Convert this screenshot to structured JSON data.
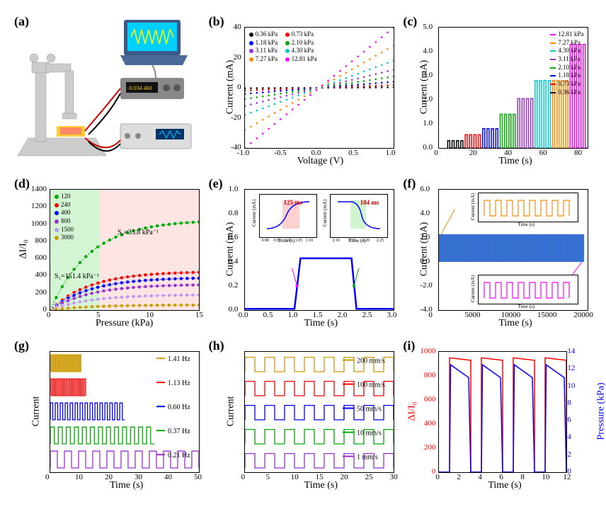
{
  "labels": {
    "a": "(a)",
    "b": "(b)",
    "c": "(c)",
    "d": "(d)",
    "e": "(e)",
    "f": "(f)",
    "g": "(g)",
    "h": "(h)",
    "i": "(i)"
  },
  "panel_b": {
    "type": "scatter",
    "xlabel": "Voltage (V)",
    "ylabel": "Current (mA)",
    "xlim": [
      -1.0,
      1.0
    ],
    "ylim": [
      -40,
      40
    ],
    "xticks": [
      -1.0,
      -0.5,
      0.0,
      0.5,
      1.0
    ],
    "yticks": [
      -40,
      -20,
      0,
      20,
      40
    ],
    "series": [
      {
        "label": "0.36 kPa",
        "color": "#000000",
        "slope": 0.3
      },
      {
        "label": "0.73 kPa",
        "color": "#ff0000",
        "slope": 1.8
      },
      {
        "label": "1.18 kPa",
        "color": "#0000ff",
        "slope": 4.0
      },
      {
        "label": "2.10 kPa",
        "color": "#00aa00",
        "slope": 7.5
      },
      {
        "label": "3.11 kPa",
        "color": "#9932cc",
        "slope": 12
      },
      {
        "label": "4.30 kPa",
        "color": "#00cccc",
        "slope": 18
      },
      {
        "label": "7.27 kPa",
        "color": "#ff8800",
        "slope": 28
      },
      {
        "label": "12.81 kPa",
        "color": "#ff00ff",
        "slope": 40
      }
    ]
  },
  "panel_c": {
    "type": "line",
    "xlabel": "Time (s)",
    "ylabel": "Current (mA)",
    "xlim": [
      0,
      85
    ],
    "ylim": [
      0,
      5.0
    ],
    "xticks": [
      0,
      20,
      40,
      60,
      80
    ],
    "yticks": [
      0.0,
      1.0,
      2.0,
      3.0,
      4.0,
      5.0
    ],
    "series": [
      {
        "label": "12.81 kPa",
        "color": "#ff00ff",
        "start": 75,
        "height": 4.3
      },
      {
        "label": "7.27 kPa",
        "color": "#ff8800",
        "start": 65,
        "height": 2.8
      },
      {
        "label": "4.30 kPa",
        "color": "#00cccc",
        "start": 55,
        "height": 2.8
      },
      {
        "label": "3.11 kPa",
        "color": "#9932cc",
        "start": 45,
        "height": 2.05
      },
      {
        "label": "2.10 kPa",
        "color": "#00aa00",
        "start": 35,
        "height": 1.4
      },
      {
        "label": "1.18 kPa",
        "color": "#0000ff",
        "start": 25,
        "height": 0.8
      },
      {
        "label": "0.73 kPa",
        "color": "#ff0000",
        "start": 15,
        "height": 0.55
      },
      {
        "label": "0.36 kPa",
        "color": "#000000",
        "start": 5,
        "height": 0.3
      }
    ]
  },
  "panel_d": {
    "type": "scatter",
    "xlabel": "Pressure (kPa)",
    "ylabel": "ΔI/I₀",
    "xlim": [
      0,
      15
    ],
    "ylim": [
      0,
      1400
    ],
    "xticks": [
      0,
      5,
      10,
      15
    ],
    "yticks": [
      0,
      200,
      400,
      600,
      800,
      1000,
      1200,
      1400
    ],
    "bg_green": "#d4f5d4",
    "bg_pink": "#ffe4e4",
    "green_split": 5,
    "series": [
      {
        "label": "120",
        "color": "#00aa00"
      },
      {
        "label": "240",
        "color": "#ff0000"
      },
      {
        "label": "400",
        "color": "#0000ff"
      },
      {
        "label": "800",
        "color": "#9932cc"
      },
      {
        "label": "1500",
        "color": "#bb99ee"
      },
      {
        "label": "3000",
        "color": "#cc9900"
      }
    ],
    "annotation1": "S₁=151.4 kPa⁻¹",
    "annotation2": "S₂=33.8 kPa⁻¹"
  },
  "panel_e": {
    "type": "line",
    "xlabel": "Time (s)",
    "ylabel": "Current (mA)",
    "xlim": [
      0,
      3.0
    ],
    "ylim": [
      0,
      1.0
    ],
    "xticks": [
      0.0,
      0.5,
      1.0,
      1.5,
      2.0,
      2.5,
      3.0
    ],
    "yticks": [
      0.0,
      0.2,
      0.4,
      0.6,
      0.8,
      1.0
    ],
    "line_color": "#0000ff",
    "rise_start": 1.0,
    "rise_end": 1.12,
    "plateau": 0.43,
    "fall_start": 2.15,
    "fall_end": 2.25,
    "inset1": {
      "label": "125 ms",
      "bg": "#ffd0d0",
      "xlabel": "Time (s)",
      "ylabel": "Current (mA)"
    },
    "inset2": {
      "label": "104 ms",
      "bg": "#d0f5d0",
      "xlabel": "Time (s)",
      "ylabel": "Current (mA)"
    }
  },
  "panel_f": {
    "type": "line",
    "xlabel": "Time (s)",
    "ylabel": "Current (mA)",
    "xlim": [
      0,
      20500
    ],
    "ylim": [
      -4,
      6
    ],
    "xticks": [
      0,
      5000,
      10000,
      15000,
      20000
    ],
    "yticks": [
      -4.0,
      -2.0,
      0.0,
      2.0,
      4.0,
      6.0
    ],
    "main_color": "#1f5fcc",
    "inset1_color": "#ff8800",
    "inset2_color": "#ff00ff",
    "inset_xlabel": "Time (s)",
    "inset_ylabel": "Current (mA)"
  },
  "panel_g": {
    "type": "line",
    "xlabel": "Time (s)",
    "ylabel": "Current",
    "xlim": [
      0,
      50
    ],
    "ylim_note": "stacked offset",
    "xticks": [
      0,
      10,
      20,
      30,
      40,
      50
    ],
    "series": [
      {
        "label": "1.41 Hz",
        "color": "#cc9900",
        "period": 0.71,
        "duration": 10
      },
      {
        "label": "1.13 Hz",
        "color": "#ff0000",
        "period": 0.88,
        "duration": 12
      },
      {
        "label": "0.60 Hz",
        "color": "#0000ff",
        "period": 1.67,
        "duration": 25
      },
      {
        "label": "0.37 Hz",
        "color": "#00aa00",
        "period": 2.7,
        "duration": 35
      },
      {
        "label": "0.21 Hz",
        "color": "#9932cc",
        "period": 4.76,
        "duration": 50
      }
    ]
  },
  "panel_h": {
    "type": "line",
    "xlabel": "Time (s)",
    "ylabel": "Current",
    "xlim": [
      0,
      30
    ],
    "xticks": [
      0,
      5,
      10,
      15,
      20,
      25,
      30
    ],
    "series": [
      {
        "label": "200 mm/s",
        "color": "#cc9900"
      },
      {
        "label": "100 mm/s",
        "color": "#ff0000"
      },
      {
        "label": "50 mm/s",
        "color": "#0000ff"
      },
      {
        "label": "10 mm/s",
        "color": "#00aa00"
      },
      {
        "label": "1 mm/s",
        "color": "#9932cc"
      }
    ]
  },
  "panel_i": {
    "type": "line",
    "xlabel": "Time (s)",
    "ylabel_left": "ΔI/I₀",
    "ylabel_right": "Pressure (kPa)",
    "ylabel_left_color": "#ff0000",
    "ylabel_right_color": "#0000ff",
    "xlim": [
      0,
      12
    ],
    "ylim_left": [
      0,
      1000
    ],
    "ylim_right": [
      0,
      14
    ],
    "xticks": [
      0,
      2,
      4,
      6,
      8,
      10,
      12
    ],
    "yticks_left": [
      0,
      200,
      400,
      600,
      800,
      1000
    ],
    "yticks_right": [
      0,
      2,
      4,
      6,
      8,
      10,
      12,
      14
    ],
    "left_color": "#ff0000",
    "right_color": "#0000ff"
  }
}
